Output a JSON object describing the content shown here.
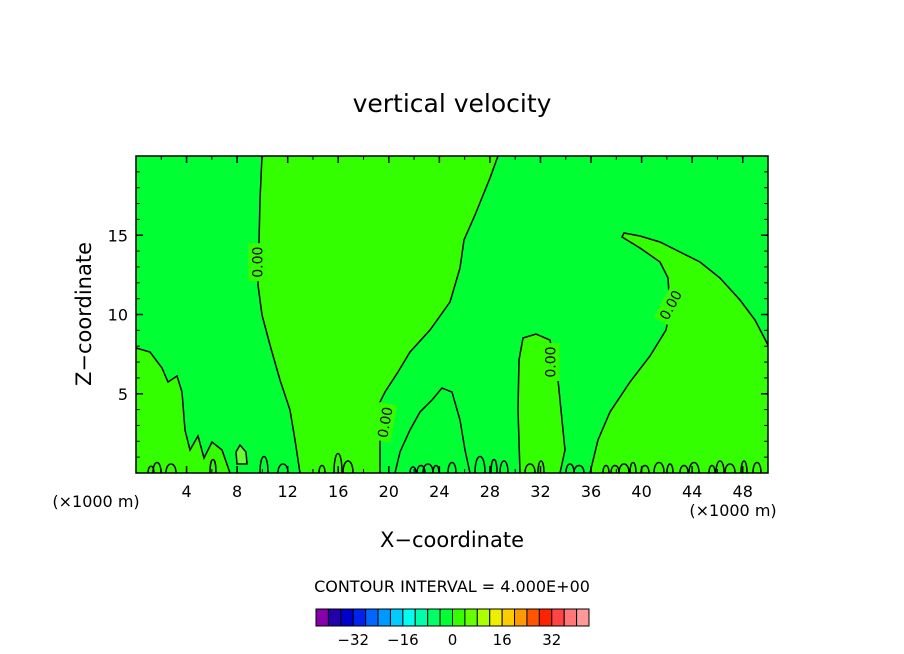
{
  "chart_data": {
    "type": "contour",
    "title": "vertical velocity",
    "xlabel": "X−coordinate",
    "ylabel": "Z−coordinate",
    "x_unit_label": "(×1000 m)",
    "z_unit_label": "(×1000 m)",
    "xlim": [
      0,
      50
    ],
    "ylim": [
      0,
      20
    ],
    "x_ticks": [
      4,
      8,
      12,
      16,
      20,
      24,
      28,
      32,
      36,
      40,
      44,
      48
    ],
    "y_ticks": [
      5,
      10,
      15
    ],
    "contour_interval_text": "CONTOUR INTERVAL = 4.000E+00",
    "contour_labels": [
      {
        "text": "0.00",
        "x": 9.6,
        "z": 13.3,
        "angle": -90
      },
      {
        "text": "0.00",
        "x": 19.7,
        "z": 3.2,
        "angle": -80
      },
      {
        "text": "0.00",
        "x": 32.8,
        "z": 7.0,
        "angle": -90
      },
      {
        "text": "0.00",
        "x": 42.3,
        "z": 10.6,
        "angle": -62
      }
    ],
    "colors": {
      "field_positive": "#00ff33",
      "field_zero_band": "#33ff00",
      "field_strong": "#66ff33"
    },
    "colorbar": {
      "colors": [
        "#8800aa",
        "#2200aa",
        "#0000cc",
        "#0022ee",
        "#0066ff",
        "#0099ff",
        "#00ccff",
        "#00ffee",
        "#00ffaa",
        "#00ff66",
        "#00ff33",
        "#33ff00",
        "#66ff00",
        "#aaff00",
        "#eeee00",
        "#ffcc00",
        "#ff9900",
        "#ff5500",
        "#ff2200",
        "#ff4444",
        "#ff7777",
        "#ff9999"
      ],
      "labels": [
        "−32",
        "−16",
        "0",
        "16",
        "32"
      ],
      "label_values": [
        -32,
        -16,
        0,
        16,
        32
      ],
      "min": -44,
      "max": 44
    }
  }
}
